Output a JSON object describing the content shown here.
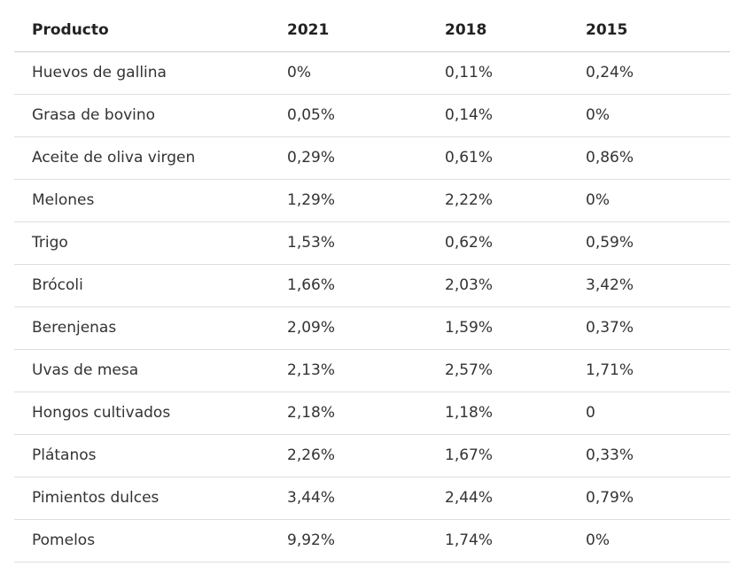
{
  "table": {
    "headers": [
      "Producto",
      "2021",
      "2018",
      "2015"
    ],
    "rows": [
      [
        "Huevos de gallina",
        "0%",
        "0,11%",
        "0,24%"
      ],
      [
        "Grasa de bovino",
        "0,05%",
        "0,14%",
        "0%"
      ],
      [
        "Aceite de oliva virgen",
        "0,29%",
        "0,61%",
        "0,86%"
      ],
      [
        "Melones",
        "1,29%",
        "2,22%",
        "0%"
      ],
      [
        "Trigo",
        "1,53%",
        "0,62%",
        "0,59%"
      ],
      [
        "Brócoli",
        "1,66%",
        "2,03%",
        "3,42%"
      ],
      [
        "Berenjenas",
        "2,09%",
        "1,59%",
        "0,37%"
      ],
      [
        "Uvas de mesa",
        "2,13%",
        "2,57%",
        "1,71%"
      ],
      [
        "Hongos cultivados",
        "2,18%",
        "1,18%",
        "0"
      ],
      [
        "Plátanos",
        "2,26%",
        "1,67%",
        "0,33%"
      ],
      [
        "Pimientos dulces",
        "3,44%",
        "2,44%",
        "0,79%"
      ],
      [
        "Pomelos",
        "9,92%",
        "1,74%",
        "0%"
      ]
    ]
  }
}
